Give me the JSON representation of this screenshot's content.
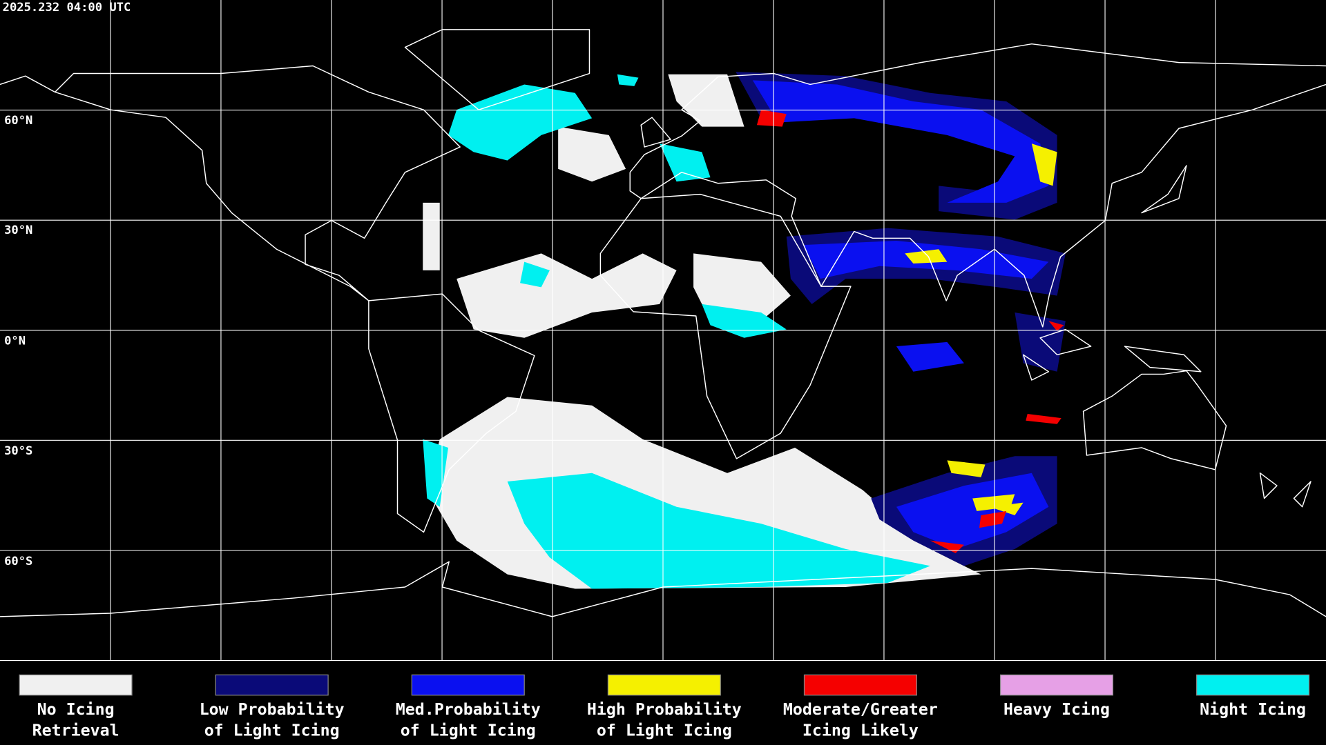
{
  "timestamp": "2025.232 04:00 UTC",
  "latitude_labels": [
    "60°N",
    "30°N",
    "0°N",
    "30°S",
    "60°S"
  ],
  "legend": [
    {
      "lines": [
        "No Icing",
        "Retrieval"
      ],
      "color": "#f0f0f0"
    },
    {
      "lines": [
        "Low Probability",
        "of Light Icing"
      ],
      "color": "#0a0a78"
    },
    {
      "lines": [
        "Med.Probability",
        "of Light Icing"
      ],
      "color": "#0a10f0"
    },
    {
      "lines": [
        "High Probability",
        "of Light Icing"
      ],
      "color": "#f5f000"
    },
    {
      "lines": [
        "Moderate/Greater",
        "Icing Likely"
      ],
      "color": "#f50000"
    },
    {
      "lines": [
        "Heavy Icing"
      ],
      "color": "#e6a0e6"
    },
    {
      "lines": [
        "Night Icing"
      ],
      "color": "#00f0f0"
    }
  ]
}
